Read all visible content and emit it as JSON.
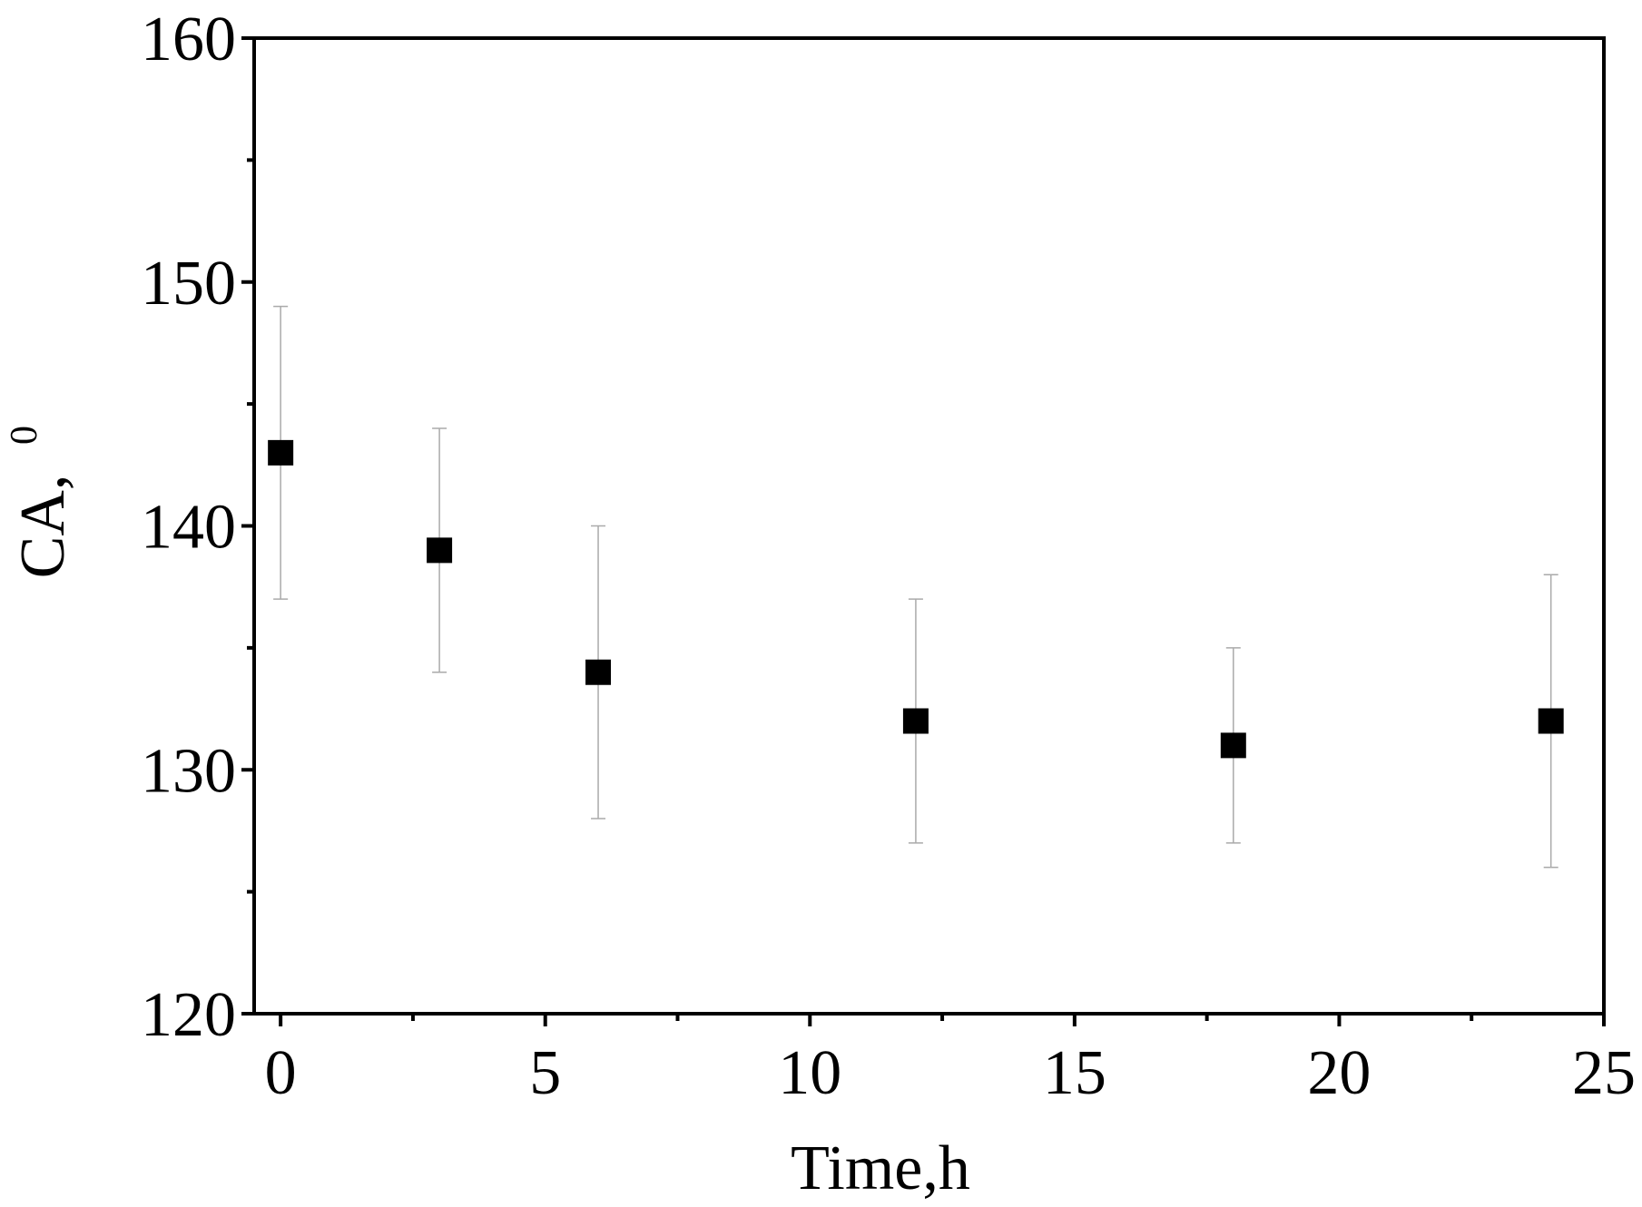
{
  "chart_data": {
    "type": "scatter",
    "xlabel": "Time,h",
    "ylabel": "CA,",
    "ylabel_sup": "0",
    "x": [
      0,
      3,
      6,
      12,
      18,
      24
    ],
    "series": [
      {
        "values": [
          143,
          139,
          134,
          132,
          131,
          132
        ],
        "errors": [
          6,
          5,
          6,
          5,
          4,
          6
        ],
        "color": "#000000"
      }
    ],
    "xlim": [
      -0.5,
      25
    ],
    "xticks": [
      0,
      5,
      10,
      15,
      20,
      25
    ],
    "ylim": [
      120,
      160
    ],
    "yticks": [
      120,
      130,
      140,
      150,
      160
    ],
    "grid": false
  }
}
